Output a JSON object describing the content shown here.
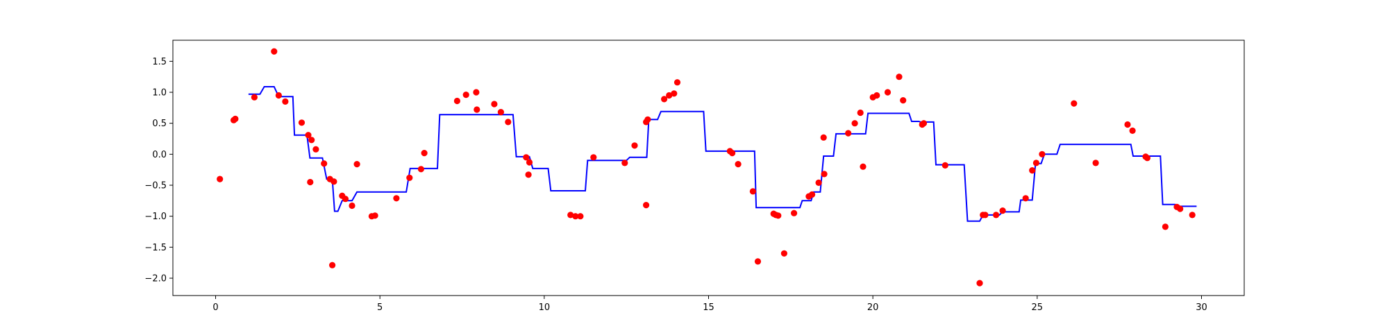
{
  "chart_data": {
    "type": "scatter+line",
    "title": "",
    "xlabel": "",
    "ylabel": "",
    "xlim": [
      -1.3,
      31.3
    ],
    "ylim": [
      -2.28,
      1.84
    ],
    "xticks": [
      0,
      5,
      10,
      15,
      20,
      25,
      30
    ],
    "xtick_labels": [
      "0",
      "5",
      "10",
      "15",
      "20",
      "25",
      "30"
    ],
    "yticks": [
      -2.0,
      -1.5,
      -1.0,
      -0.5,
      0.0,
      0.5,
      1.0,
      1.5
    ],
    "ytick_labels": [
      "−2.0",
      "−1.5",
      "−1.0",
      "−0.5",
      "0.0",
      "0.5",
      "1.0",
      "1.5"
    ],
    "grid": false,
    "legend": false,
    "series": [
      {
        "kind": "scatter",
        "color": "#ff0000",
        "points": [
          [
            0.13,
            -0.4
          ],
          [
            0.55,
            0.55
          ],
          [
            0.6,
            0.57
          ],
          [
            1.18,
            0.92
          ],
          [
            1.78,
            1.66
          ],
          [
            1.92,
            0.95
          ],
          [
            2.12,
            0.85
          ],
          [
            2.62,
            0.51
          ],
          [
            2.82,
            0.31
          ],
          [
            2.88,
            -0.45
          ],
          [
            2.92,
            0.23
          ],
          [
            3.05,
            0.08
          ],
          [
            3.3,
            -0.15
          ],
          [
            3.48,
            -0.4
          ],
          [
            3.55,
            -1.79
          ],
          [
            3.6,
            -0.44
          ],
          [
            3.85,
            -0.67
          ],
          [
            3.95,
            -0.72
          ],
          [
            4.15,
            -0.83
          ],
          [
            4.3,
            -0.16
          ],
          [
            4.75,
            -1.0
          ],
          [
            4.85,
            -0.99
          ],
          [
            5.5,
            -0.71
          ],
          [
            5.9,
            -0.38
          ],
          [
            6.25,
            -0.24
          ],
          [
            6.35,
            0.02
          ],
          [
            7.35,
            0.86
          ],
          [
            7.62,
            0.96
          ],
          [
            7.93,
            1.0
          ],
          [
            7.95,
            0.72
          ],
          [
            8.48,
            0.81
          ],
          [
            8.68,
            0.68
          ],
          [
            8.9,
            0.52
          ],
          [
            9.45,
            -0.05
          ],
          [
            9.52,
            -0.33
          ],
          [
            9.55,
            -0.13
          ],
          [
            10.8,
            -0.98
          ],
          [
            10.95,
            -1.0
          ],
          [
            11.1,
            -1.0
          ],
          [
            11.5,
            -0.05
          ],
          [
            12.45,
            -0.14
          ],
          [
            12.75,
            0.14
          ],
          [
            13.1,
            -0.82
          ],
          [
            13.1,
            0.52
          ],
          [
            13.15,
            0.56
          ],
          [
            13.65,
            0.89
          ],
          [
            13.8,
            0.95
          ],
          [
            13.95,
            0.98
          ],
          [
            14.05,
            1.16
          ],
          [
            15.65,
            0.05
          ],
          [
            15.72,
            0.02
          ],
          [
            15.9,
            -0.16
          ],
          [
            16.35,
            -0.6
          ],
          [
            16.5,
            -1.73
          ],
          [
            16.98,
            -0.96
          ],
          [
            17.05,
            -0.98
          ],
          [
            17.12,
            -0.99
          ],
          [
            17.3,
            -1.6
          ],
          [
            17.6,
            -0.95
          ],
          [
            18.05,
            -0.68
          ],
          [
            18.15,
            -0.65
          ],
          [
            18.35,
            -0.46
          ],
          [
            18.5,
            0.27
          ],
          [
            18.52,
            -0.32
          ],
          [
            19.25,
            0.34
          ],
          [
            19.45,
            0.5
          ],
          [
            19.62,
            0.67
          ],
          [
            19.7,
            -0.2
          ],
          [
            20.0,
            0.92
          ],
          [
            20.12,
            0.95
          ],
          [
            20.45,
            1.0
          ],
          [
            20.8,
            1.25
          ],
          [
            20.92,
            0.87
          ],
          [
            21.5,
            0.48
          ],
          [
            21.55,
            0.5
          ],
          [
            22.2,
            -0.18
          ],
          [
            23.25,
            -2.08
          ],
          [
            23.35,
            -0.98
          ],
          [
            23.42,
            -0.98
          ],
          [
            23.75,
            -0.98
          ],
          [
            23.95,
            -0.91
          ],
          [
            24.65,
            -0.71
          ],
          [
            24.85,
            -0.26
          ],
          [
            24.97,
            -0.14
          ],
          [
            25.15,
            0.0
          ],
          [
            26.12,
            0.82
          ],
          [
            26.78,
            -0.14
          ],
          [
            27.75,
            0.48
          ],
          [
            27.9,
            0.38
          ],
          [
            28.3,
            -0.04
          ],
          [
            28.35,
            -0.06
          ],
          [
            28.9,
            -1.17
          ],
          [
            29.25,
            -0.85
          ],
          [
            29.35,
            -0.88
          ],
          [
            29.72,
            -0.98
          ]
        ]
      },
      {
        "kind": "line",
        "color": "#0000ff",
        "points": [
          [
            1.0,
            0.97
          ],
          [
            1.35,
            0.97
          ],
          [
            1.48,
            1.09
          ],
          [
            1.78,
            1.09
          ],
          [
            1.92,
            0.93
          ],
          [
            2.35,
            0.93
          ],
          [
            2.4,
            0.31
          ],
          [
            2.78,
            0.31
          ],
          [
            2.87,
            -0.06
          ],
          [
            3.25,
            -0.06
          ],
          [
            3.38,
            -0.4
          ],
          [
            3.55,
            -0.4
          ],
          [
            3.62,
            -0.92
          ],
          [
            3.72,
            -0.92
          ],
          [
            3.85,
            -0.75
          ],
          [
            4.15,
            -0.75
          ],
          [
            4.3,
            -0.61
          ],
          [
            5.8,
            -0.61
          ],
          [
            5.92,
            -0.23
          ],
          [
            6.75,
            -0.23
          ],
          [
            6.82,
            0.64
          ],
          [
            9.05,
            0.64
          ],
          [
            9.15,
            -0.04
          ],
          [
            9.55,
            -0.04
          ],
          [
            9.65,
            -0.23
          ],
          [
            10.12,
            -0.23
          ],
          [
            10.2,
            -0.59
          ],
          [
            11.25,
            -0.59
          ],
          [
            11.32,
            -0.1
          ],
          [
            12.5,
            -0.1
          ],
          [
            12.6,
            -0.05
          ],
          [
            13.12,
            -0.05
          ],
          [
            13.18,
            0.56
          ],
          [
            13.45,
            0.56
          ],
          [
            13.55,
            0.69
          ],
          [
            14.85,
            0.69
          ],
          [
            14.92,
            0.05
          ],
          [
            16.4,
            0.05
          ],
          [
            16.45,
            -0.86
          ],
          [
            17.78,
            -0.86
          ],
          [
            17.85,
            -0.75
          ],
          [
            18.12,
            -0.75
          ],
          [
            18.2,
            -0.61
          ],
          [
            18.4,
            -0.61
          ],
          [
            18.5,
            -0.03
          ],
          [
            18.8,
            -0.03
          ],
          [
            18.88,
            0.33
          ],
          [
            19.78,
            0.33
          ],
          [
            19.85,
            0.66
          ],
          [
            21.1,
            0.66
          ],
          [
            21.18,
            0.53
          ],
          [
            21.4,
            0.53
          ],
          [
            21.45,
            0.52
          ],
          [
            21.85,
            0.52
          ],
          [
            21.92,
            -0.17
          ],
          [
            22.78,
            -0.17
          ],
          [
            22.88,
            -1.08
          ],
          [
            23.25,
            -1.08
          ],
          [
            23.35,
            -0.98
          ],
          [
            23.85,
            -0.98
          ],
          [
            23.95,
            -0.93
          ],
          [
            24.45,
            -0.93
          ],
          [
            24.5,
            -0.74
          ],
          [
            24.85,
            -0.74
          ],
          [
            24.95,
            -0.15
          ],
          [
            25.12,
            -0.15
          ],
          [
            25.22,
            0.0
          ],
          [
            25.6,
            0.0
          ],
          [
            25.7,
            0.16
          ],
          [
            27.85,
            0.16
          ],
          [
            27.92,
            -0.03
          ],
          [
            28.75,
            -0.03
          ],
          [
            28.82,
            -0.81
          ],
          [
            29.2,
            -0.81
          ],
          [
            29.35,
            -0.84
          ],
          [
            29.85,
            -0.84
          ]
        ]
      }
    ]
  }
}
